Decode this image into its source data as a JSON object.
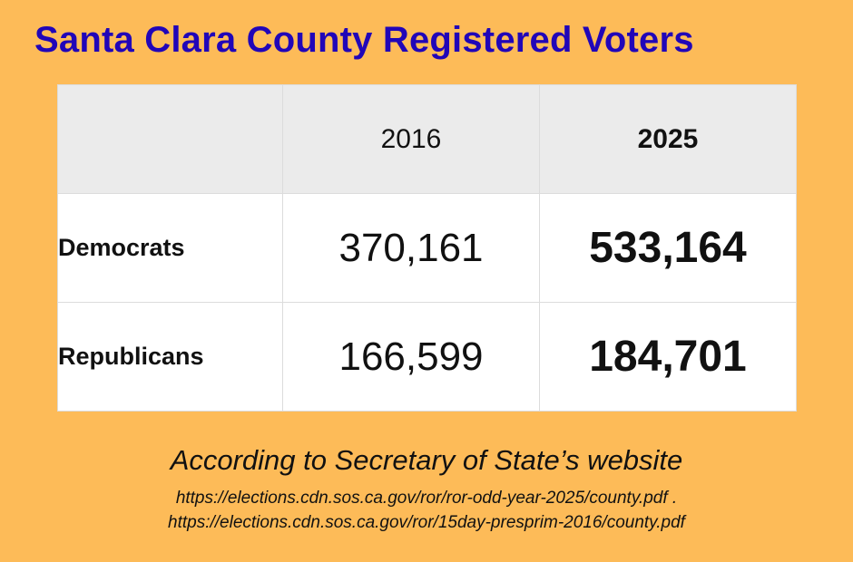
{
  "title": "Santa Clara County Registered Voters",
  "table": {
    "header": [
      "",
      "2016",
      "2025"
    ],
    "rows": [
      {
        "label": "Democrats",
        "v2016": "370,161",
        "v2025": "533,164"
      },
      {
        "label": "Republicans",
        "v2016": "166,599",
        "v2025": "184,701"
      }
    ]
  },
  "source": {
    "heading": "According to Secretary of State’s website",
    "links": [
      "https://elections.cdn.sos.ca.gov/ror/ror-odd-year-2025/county.pdf .",
      "https://elections.cdn.sos.ca.gov/ror/15day-presprim-2016/county.pdf"
    ]
  },
  "colors": {
    "background": "#FDBB58",
    "title": "#2106B8",
    "header_row": "#EBEBEB",
    "cell": "#FFFFFF"
  }
}
